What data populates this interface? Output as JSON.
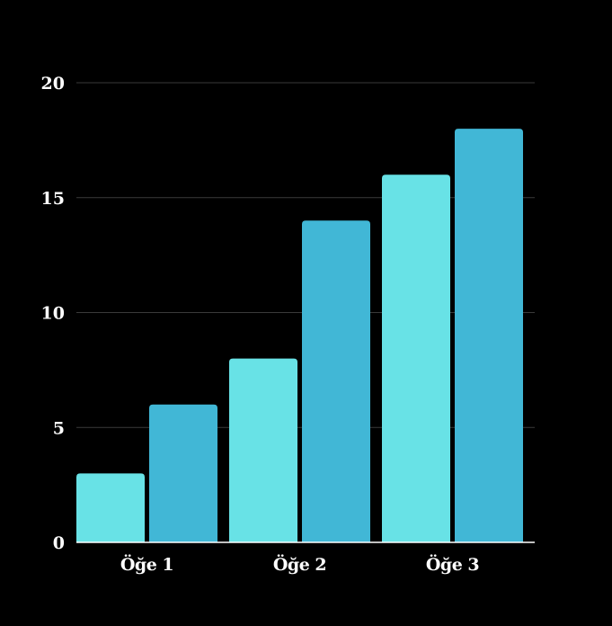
{
  "chart_data": {
    "type": "bar",
    "categories": [
      "Öğe 1",
      "Öğe 2",
      "Öğe 3"
    ],
    "series": [
      {
        "values": [
          3,
          8,
          16
        ],
        "color": "#68e2e6"
      },
      {
        "values": [
          6,
          14,
          18
        ],
        "color": "#41b7d6"
      }
    ],
    "yticks": [
      "0",
      "5",
      "10",
      "15",
      "20"
    ],
    "ylim": [
      0,
      20
    ],
    "grid": true,
    "background": "#000000"
  }
}
